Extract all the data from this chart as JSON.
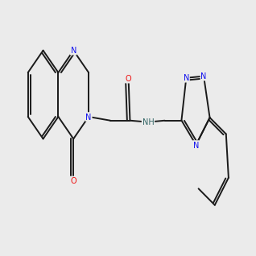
{
  "bg_color": "#ebebeb",
  "bond_color": "#1a1a1a",
  "N_color": "#1010ee",
  "O_color": "#ee1010",
  "NH_color": "#336666",
  "font_size": 7.0,
  "lw": 1.4,
  "title": "2-(4-oxoquinazolin-3(4H)-yl)-N-([1,2,4]triazolo[4,3-a]pyridin-3-ylmethyl)acetamide"
}
